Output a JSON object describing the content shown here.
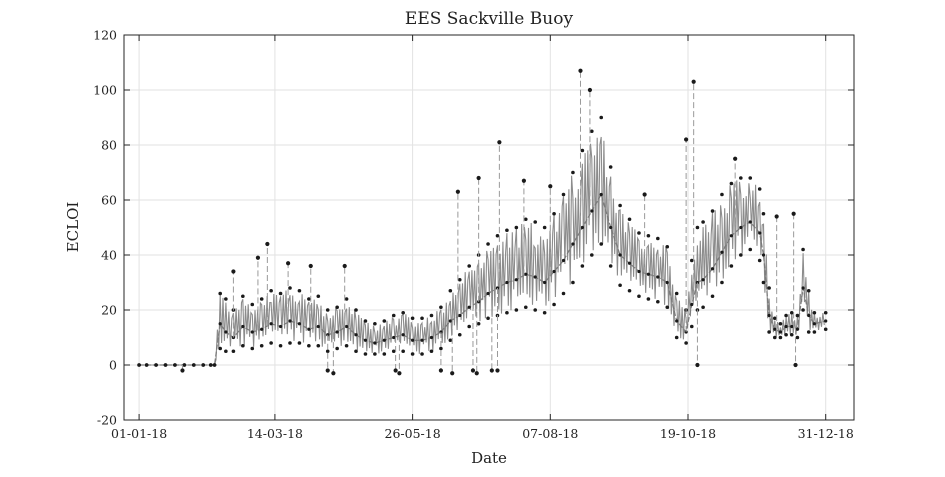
{
  "chart_data": {
    "type": "line",
    "title": "EES Sackville Buoy",
    "xlabel": "Date",
    "ylabel": "ECLOI",
    "xlim": [
      "2017-12-24",
      "2019-01-15"
    ],
    "ylim": [
      -20,
      120
    ],
    "grid": true,
    "x_tick_labels": [
      "01-01-18",
      "14-03-18",
      "26-05-18",
      "07-08-18",
      "19-10-18",
      "31-12-18"
    ],
    "x_tick_dates": [
      "2018-01-01",
      "2018-03-14",
      "2018-05-26",
      "2018-08-07",
      "2018-10-19",
      "2018-12-31"
    ],
    "y_tick_labels": [
      "-20",
      "0",
      "20",
      "40",
      "60",
      "80",
      "100",
      "120"
    ],
    "y_ticks": [
      -20,
      0,
      20,
      40,
      60,
      80,
      100,
      120
    ],
    "series": [
      {
        "color": "#8c8c8c",
        "marker_color": "#1a1a1a",
        "x": [
          "2018-01-01",
          "2018-01-05",
          "2018-01-10",
          "2018-01-15",
          "2018-01-20",
          "2018-01-25",
          "2018-01-30",
          "2018-02-04",
          "2018-02-08",
          "2018-02-10",
          "2018-02-13",
          "2018-02-16",
          "2018-02-20",
          "2018-02-25",
          "2018-03-02",
          "2018-03-07",
          "2018-03-12",
          "2018-03-17",
          "2018-03-22",
          "2018-03-27",
          "2018-04-01",
          "2018-04-06",
          "2018-04-11",
          "2018-04-16",
          "2018-04-21",
          "2018-04-26",
          "2018-05-01",
          "2018-05-06",
          "2018-05-11",
          "2018-05-16",
          "2018-05-21",
          "2018-05-26",
          "2018-05-31",
          "2018-06-05",
          "2018-06-10",
          "2018-06-15",
          "2018-06-20",
          "2018-06-25",
          "2018-06-30",
          "2018-07-05",
          "2018-07-10",
          "2018-07-15",
          "2018-07-20",
          "2018-07-25",
          "2018-07-30",
          "2018-08-04",
          "2018-08-09",
          "2018-08-14",
          "2018-08-19",
          "2018-08-24",
          "2018-08-29",
          "2018-09-03",
          "2018-09-08",
          "2018-09-13",
          "2018-09-18",
          "2018-09-23",
          "2018-09-28",
          "2018-10-03",
          "2018-10-08",
          "2018-10-13",
          "2018-10-18",
          "2018-10-21",
          "2018-10-24",
          "2018-10-27",
          "2018-11-01",
          "2018-11-06",
          "2018-11-11",
          "2018-11-16",
          "2018-11-21",
          "2018-11-26",
          "2018-11-28",
          "2018-12-01",
          "2018-12-04",
          "2018-12-07",
          "2018-12-10",
          "2018-12-13",
          "2018-12-16",
          "2018-12-19",
          "2018-12-22",
          "2018-12-25",
          "2018-12-31"
        ],
        "y": [
          0,
          0,
          0,
          0,
          0,
          0,
          0,
          0,
          0,
          0,
          15,
          12,
          10,
          14,
          12,
          13,
          15,
          14,
          16,
          15,
          13,
          14,
          11,
          12,
          14,
          11,
          9,
          8,
          9,
          10,
          11,
          9,
          9,
          10,
          12,
          16,
          18,
          21,
          23,
          26,
          28,
          30,
          31,
          33,
          32,
          30,
          34,
          38,
          44,
          50,
          56,
          62,
          50,
          40,
          37,
          34,
          33,
          32,
          30,
          16,
          12,
          22,
          30,
          31,
          35,
          41,
          47,
          50,
          52,
          48,
          40,
          18,
          13,
          12,
          14,
          14,
          13,
          28,
          18,
          15,
          16
        ],
        "y_low": [
          0,
          0,
          0,
          0,
          0,
          0,
          0,
          0,
          0,
          0,
          6,
          5,
          5,
          7,
          6,
          7,
          8,
          7,
          8,
          8,
          7,
          7,
          5,
          6,
          7,
          5,
          4,
          4,
          4,
          5,
          5,
          4,
          4,
          5,
          6,
          9,
          11,
          14,
          15,
          17,
          18,
          19,
          20,
          21,
          20,
          19,
          22,
          26,
          30,
          36,
          40,
          44,
          36,
          29,
          27,
          25,
          24,
          23,
          21,
          10,
          8,
          14,
          20,
          21,
          25,
          30,
          36,
          40,
          42,
          38,
          30,
          12,
          10,
          10,
          11,
          11,
          10,
          20,
          12,
          12,
          13
        ],
        "y_high": [
          0,
          0,
          0,
          0,
          0,
          0,
          0,
          0,
          0,
          0,
          26,
          24,
          20,
          25,
          22,
          24,
          27,
          26,
          28,
          27,
          24,
          25,
          20,
          21,
          24,
          20,
          16,
          15,
          16,
          18,
          19,
          17,
          17,
          18,
          21,
          27,
          31,
          36,
          40,
          44,
          47,
          49,
          50,
          53,
          52,
          50,
          55,
          62,
          70,
          78,
          85,
          90,
          72,
          58,
          53,
          48,
          47,
          46,
          43,
          26,
          20,
          38,
          50,
          52,
          56,
          62,
          66,
          68,
          68,
          64,
          55,
          28,
          17,
          15,
          18,
          19,
          18,
          42,
          27,
          19,
          19
        ],
        "spikes": [
          {
            "x": "2018-01-24",
            "y": -2
          },
          {
            "x": "2018-02-20",
            "y": 34
          },
          {
            "x": "2018-03-05",
            "y": 39
          },
          {
            "x": "2018-03-10",
            "y": 44
          },
          {
            "x": "2018-03-21",
            "y": 37
          },
          {
            "x": "2018-04-02",
            "y": 36
          },
          {
            "x": "2018-04-11",
            "y": -2
          },
          {
            "x": "2018-04-14",
            "y": -3
          },
          {
            "x": "2018-04-20",
            "y": 36
          },
          {
            "x": "2018-05-17",
            "y": -2
          },
          {
            "x": "2018-05-19",
            "y": -3
          },
          {
            "x": "2018-06-10",
            "y": -2
          },
          {
            "x": "2018-06-16",
            "y": -3
          },
          {
            "x": "2018-06-19",
            "y": 63
          },
          {
            "x": "2018-06-27",
            "y": -2
          },
          {
            "x": "2018-06-29",
            "y": -3
          },
          {
            "x": "2018-06-30",
            "y": 68
          },
          {
            "x": "2018-07-07",
            "y": -2
          },
          {
            "x": "2018-07-10",
            "y": -2
          },
          {
            "x": "2018-07-11",
            "y": 81
          },
          {
            "x": "2018-07-24",
            "y": 67
          },
          {
            "x": "2018-08-07",
            "y": 65
          },
          {
            "x": "2018-08-23",
            "y": 107
          },
          {
            "x": "2018-08-28",
            "y": 100
          },
          {
            "x": "2018-09-26",
            "y": 62
          },
          {
            "x": "2018-10-18",
            "y": 82
          },
          {
            "x": "2018-10-22",
            "y": 103
          },
          {
            "x": "2018-10-24",
            "y": 0
          },
          {
            "x": "2018-11-13",
            "y": 75
          },
          {
            "x": "2018-12-05",
            "y": 54
          },
          {
            "x": "2018-12-14",
            "y": 55
          },
          {
            "x": "2018-12-15",
            "y": 0
          }
        ]
      }
    ]
  }
}
